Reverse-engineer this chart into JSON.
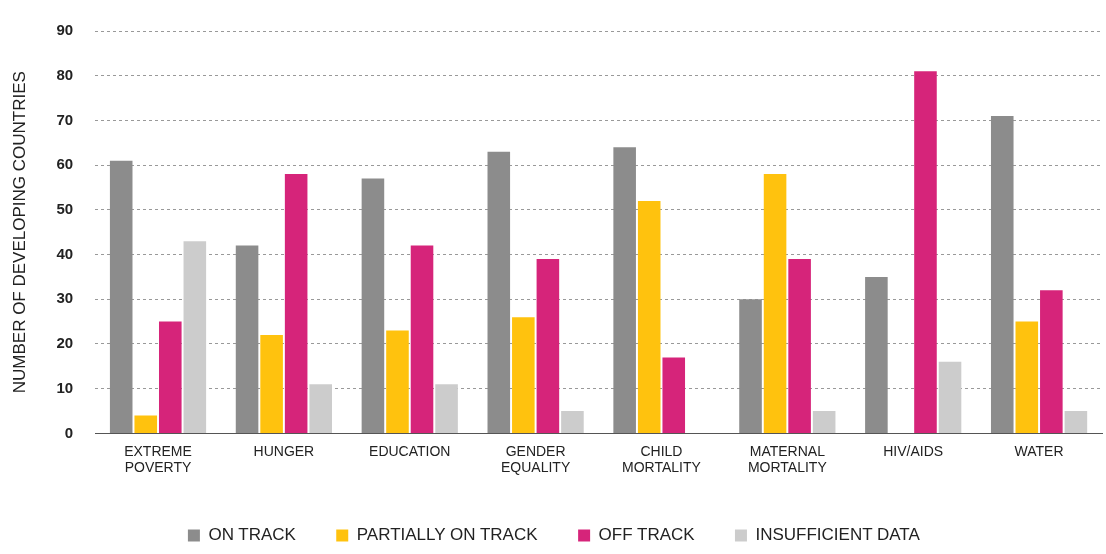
{
  "chart_data": {
    "type": "bar",
    "ylabel": "NUMBER OF DEVELOPING COUNTRIES",
    "categories": [
      "EXTREME POVERTY",
      "HUNGER",
      "EDUCATION",
      "GENDER EQUALITY",
      "CHILD MORTALITY",
      "MATERNAL MORTALITY",
      "HIV/AIDS",
      "WATER"
    ],
    "series": [
      {
        "name": "ON TRACK",
        "color": "#8c8c8c",
        "values": [
          61,
          42,
          57,
          63,
          64,
          30,
          35,
          71
        ]
      },
      {
        "name": "PARTIALLY ON TRACK",
        "color": "#ffc20e",
        "values": [
          4,
          22,
          23,
          26,
          52,
          58,
          null,
          25
        ]
      },
      {
        "name": "OFF TRACK",
        "color": "#d6247a",
        "values": [
          25,
          58,
          42,
          39,
          17,
          39,
          81,
          32
        ]
      },
      {
        "name": "INSUFFICIENT DATA",
        "color": "#cccccc",
        "values": [
          43,
          11,
          11,
          5,
          null,
          5,
          16,
          5
        ]
      }
    ],
    "ylim": [
      0,
      90
    ],
    "yticks": [
      0,
      10,
      20,
      30,
      40,
      50,
      60,
      70,
      80,
      90
    ],
    "grid": "y",
    "legend": "bottom"
  }
}
